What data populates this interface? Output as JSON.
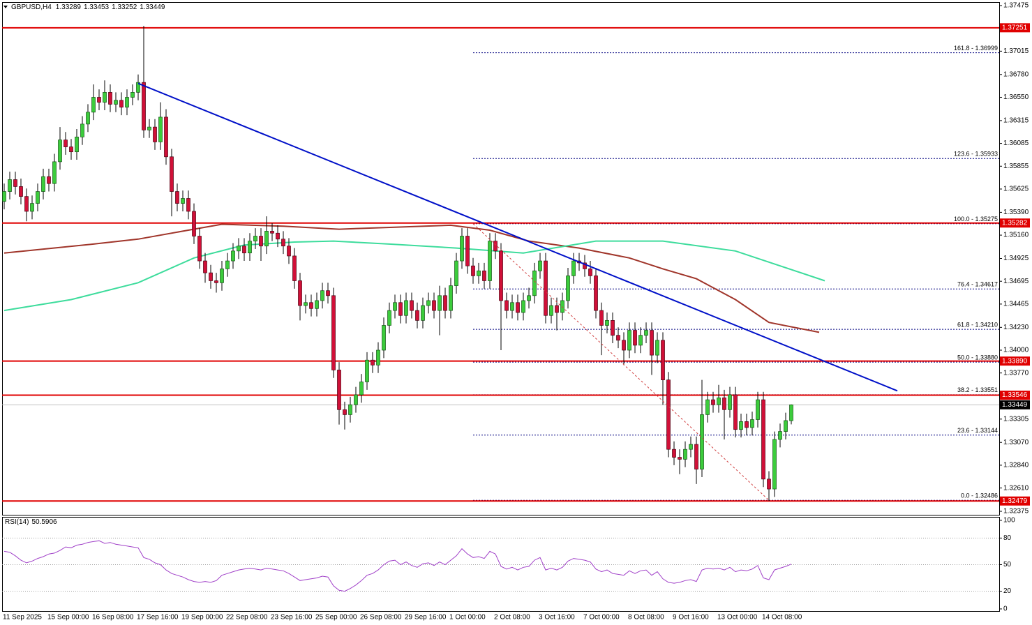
{
  "chart_data": {
    "type": "candlestick",
    "symbol": "GBPUSD,H4",
    "header_ohlc": [
      1.33289,
      1.33453,
      1.33252,
      1.33449
    ],
    "categories": [
      "11 Sep 2025",
      null,
      null,
      null,
      null,
      null,
      null,
      null,
      "15 Sep 00:00",
      null,
      null,
      null,
      null,
      null,
      null,
      null,
      "16 Sep 08:00",
      null,
      null,
      null,
      null,
      null,
      null,
      null,
      "17 Sep 16:00",
      null,
      null,
      null,
      null,
      null,
      null,
      null,
      "19 Sep 00:00",
      null,
      null,
      null,
      null,
      null,
      null,
      null,
      "22 Sep 08:00",
      null,
      null,
      null,
      null,
      null,
      null,
      null,
      "23 Sep 16:00",
      null,
      null,
      null,
      null,
      null,
      null,
      null,
      "25 Sep 00:00",
      null,
      null,
      null,
      null,
      null,
      null,
      null,
      "26 Sep 08:00",
      null,
      null,
      null,
      null,
      null,
      null,
      null,
      "29 Sep 16:00",
      null,
      null,
      null,
      null,
      null,
      null,
      null,
      "1 Oct 00:00",
      null,
      null,
      null,
      null,
      null,
      null,
      null,
      "2 Oct 08:00",
      null,
      null,
      null,
      null,
      null,
      null,
      null,
      "3 Oct 16:00",
      null,
      null,
      null,
      null,
      null,
      null,
      null,
      "7 Oct 00:00",
      null,
      null,
      null,
      null,
      null,
      null,
      null,
      "8 Oct 08:00",
      null,
      null,
      null,
      null,
      null,
      null,
      null,
      "9 Oct 16:00",
      null,
      null,
      null,
      null,
      null,
      null,
      null,
      "13 Oct 00:00",
      null,
      null,
      null,
      null,
      null,
      null,
      null,
      "14 Oct 08:00",
      null,
      null,
      null,
      null,
      null
    ],
    "open": [
      1.355,
      1.356,
      1.3572,
      1.3565,
      1.3555,
      1.354,
      1.3548,
      1.356,
      1.3575,
      1.3568,
      1.359,
      1.3612,
      1.3605,
      1.36,
      1.3615,
      1.3628,
      1.364,
      1.3655,
      1.365,
      1.366,
      1.3648,
      1.3652,
      1.3645,
      1.3655,
      1.366,
      1.367,
      1.3622,
      1.3625,
      1.361,
      1.3635,
      1.3595,
      1.356,
      1.3548,
      1.3553,
      1.354,
      1.3515,
      1.349,
      1.3478,
      1.347,
      1.3468,
      1.3482,
      1.349,
      1.35,
      1.3505,
      1.3498,
      1.351,
      1.3515,
      1.3505,
      1.352,
      1.3518,
      1.3512,
      1.3505,
      1.3495,
      1.347,
      1.3445,
      1.3448,
      1.3442,
      1.345,
      1.346,
      1.3455,
      1.338,
      1.334,
      1.3335,
      1.3345,
      1.3355,
      1.3368,
      1.339,
      1.3385,
      1.34,
      1.3425,
      1.344,
      1.3448,
      1.3435,
      1.345,
      1.344,
      1.343,
      1.3445,
      1.345,
      1.344,
      1.3455,
      1.344,
      1.3465,
      1.349,
      1.3515,
      1.3485,
      1.3475,
      1.348,
      1.347,
      1.351,
      1.35,
      1.345,
      1.344,
      1.3448,
      1.3438,
      1.345,
      1.3455,
      1.348,
      1.349,
      1.3435,
      1.3445,
      1.3438,
      1.345,
      1.3475,
      1.349,
      1.3488,
      1.3482,
      1.3475,
      1.344,
      1.3425,
      1.343,
      1.3415,
      1.341,
      1.34,
      1.342,
      1.3405,
      1.3415,
      1.342,
      1.3395,
      1.341,
      1.337,
      1.33,
      1.3292,
      1.329,
      1.33,
      1.3305,
      1.328,
      1.3335,
      1.335,
      1.3345,
      1.3352,
      1.334,
      1.3355,
      1.332,
      1.3328,
      1.3322,
      1.333,
      1.335,
      1.327,
      1.326,
      1.331,
      1.3318,
      1.33289
    ],
    "high": [
      1.3568,
      1.358,
      1.358,
      1.3573,
      1.3563,
      1.3556,
      1.3568,
      1.3583,
      1.3583,
      1.3598,
      1.3625,
      1.362,
      1.3613,
      1.3623,
      1.3636,
      1.3648,
      1.3668,
      1.3663,
      1.3672,
      1.3668,
      1.366,
      1.366,
      1.3663,
      1.3668,
      1.3678,
      1.3727,
      1.3633,
      1.3633,
      1.365,
      1.3643,
      1.3603,
      1.3568,
      1.3561,
      1.3561,
      1.3548,
      1.3523,
      1.3498,
      1.3486,
      1.3478,
      1.349,
      1.3498,
      1.3508,
      1.3513,
      1.3513,
      1.3518,
      1.3523,
      1.3523,
      1.3535,
      1.3528,
      1.3526,
      1.352,
      1.3513,
      1.3503,
      1.3478,
      1.3456,
      1.3456,
      1.3458,
      1.3468,
      1.3468,
      1.3463,
      1.3388,
      1.3348,
      1.3353,
      1.3363,
      1.3376,
      1.3398,
      1.3398,
      1.3408,
      1.3433,
      1.3448,
      1.3456,
      1.3456,
      1.3458,
      1.3458,
      1.3448,
      1.3453,
      1.3458,
      1.3458,
      1.3465,
      1.3463,
      1.3473,
      1.3498,
      1.3523,
      1.3523,
      1.3493,
      1.3488,
      1.3488,
      1.3518,
      1.3518,
      1.3508,
      1.3458,
      1.3456,
      1.3456,
      1.3458,
      1.3463,
      1.3488,
      1.3498,
      1.3498,
      1.3453,
      1.3453,
      1.3458,
      1.3483,
      1.3498,
      1.3498,
      1.3496,
      1.349,
      1.3483,
      1.3448,
      1.3438,
      1.3438,
      1.3423,
      1.3418,
      1.3428,
      1.3428,
      1.3423,
      1.3428,
      1.3428,
      1.3418,
      1.3418,
      1.3378,
      1.3308,
      1.33,
      1.3308,
      1.3313,
      1.3313,
      1.337,
      1.3358,
      1.3358,
      1.3365,
      1.336,
      1.3363,
      1.3363,
      1.3336,
      1.3336,
      1.3338,
      1.3358,
      1.3358,
      1.3278,
      1.3318,
      1.3326,
      1.3337,
      1.33453
    ],
    "low": [
      1.3542,
      1.3552,
      1.3557,
      1.3547,
      1.353,
      1.3532,
      1.354,
      1.3552,
      1.356,
      1.356,
      1.3582,
      1.3597,
      1.3592,
      1.3592,
      1.3607,
      1.362,
      1.3632,
      1.3642,
      1.3642,
      1.364,
      1.364,
      1.3637,
      1.3637,
      1.3647,
      1.3652,
      1.3614,
      1.3614,
      1.3602,
      1.3602,
      1.3587,
      1.3535,
      1.354,
      1.354,
      1.3532,
      1.3507,
      1.3482,
      1.3468,
      1.3462,
      1.3458,
      1.346,
      1.3474,
      1.3482,
      1.3492,
      1.349,
      1.349,
      1.3502,
      1.349,
      1.3497,
      1.351,
      1.3504,
      1.3497,
      1.3487,
      1.3462,
      1.343,
      1.3437,
      1.3434,
      1.3434,
      1.3442,
      1.3447,
      1.3372,
      1.3325,
      1.332,
      1.3327,
      1.3337,
      1.3347,
      1.336,
      1.3377,
      1.3377,
      1.3392,
      1.3417,
      1.3432,
      1.3427,
      1.3427,
      1.3432,
      1.3422,
      1.3422,
      1.3437,
      1.3432,
      1.3415,
      1.3432,
      1.3432,
      1.3457,
      1.3482,
      1.3477,
      1.3467,
      1.3467,
      1.3462,
      1.3462,
      1.3492,
      1.34,
      1.3432,
      1.3432,
      1.343,
      1.343,
      1.3442,
      1.3447,
      1.3472,
      1.3427,
      1.3427,
      1.342,
      1.343,
      1.3442,
      1.3467,
      1.348,
      1.3474,
      1.3467,
      1.3432,
      1.3395,
      1.3417,
      1.3407,
      1.3402,
      1.3385,
      1.3392,
      1.3397,
      1.3397,
      1.3407,
      1.3375,
      1.3387,
      1.3345,
      1.3292,
      1.3284,
      1.3275,
      1.3282,
      1.3292,
      1.3265,
      1.3272,
      1.3327,
      1.3337,
      1.3337,
      1.331,
      1.3332,
      1.3312,
      1.3312,
      1.3314,
      1.3314,
      1.3322,
      1.3262,
      1.3248,
      1.3252,
      1.3302,
      1.331,
      1.33252
    ],
    "close": [
      1.356,
      1.3572,
      1.3565,
      1.3555,
      1.354,
      1.3548,
      1.356,
      1.3575,
      1.3568,
      1.359,
      1.3612,
      1.3605,
      1.36,
      1.3615,
      1.3628,
      1.364,
      1.3655,
      1.365,
      1.366,
      1.3648,
      1.3652,
      1.3645,
      1.3655,
      1.366,
      1.367,
      1.3622,
      1.3625,
      1.361,
      1.3635,
      1.3595,
      1.356,
      1.3548,
      1.3553,
      1.354,
      1.3515,
      1.349,
      1.3478,
      1.347,
      1.3468,
      1.3482,
      1.349,
      1.35,
      1.3505,
      1.3498,
      1.351,
      1.3515,
      1.3505,
      1.352,
      1.3518,
      1.3512,
      1.3505,
      1.3495,
      1.347,
      1.3445,
      1.3448,
      1.3442,
      1.345,
      1.346,
      1.3455,
      1.338,
      1.334,
      1.3335,
      1.3345,
      1.3355,
      1.3368,
      1.339,
      1.3385,
      1.34,
      1.3425,
      1.344,
      1.3448,
      1.3435,
      1.345,
      1.344,
      1.343,
      1.3445,
      1.345,
      1.344,
      1.3455,
      1.344,
      1.3465,
      1.349,
      1.3515,
      1.3485,
      1.3475,
      1.348,
      1.347,
      1.351,
      1.35,
      1.345,
      1.344,
      1.3448,
      1.3438,
      1.345,
      1.3455,
      1.348,
      1.349,
      1.3435,
      1.3445,
      1.3438,
      1.345,
      1.3475,
      1.349,
      1.3488,
      1.3482,
      1.3475,
      1.344,
      1.3425,
      1.343,
      1.3415,
      1.341,
      1.34,
      1.342,
      1.3405,
      1.3415,
      1.342,
      1.3395,
      1.341,
      1.337,
      1.33,
      1.3292,
      1.329,
      1.33,
      1.3305,
      1.328,
      1.3335,
      1.335,
      1.3345,
      1.3352,
      1.334,
      1.3355,
      1.332,
      1.3328,
      1.3322,
      1.333,
      1.335,
      1.327,
      1.326,
      1.331,
      1.3318,
      1.3329,
      1.33449
    ],
    "up_color": "#3ccc3c",
    "down_color": "#d01038",
    "ylim": [
      1.3234,
      1.3751
    ],
    "yticks": [
      1.37475,
      1.37015,
      {
        "value": 1.3678,
        "label": "1.36780"
      },
      {
        "value": 1.3655,
        "label": "1.36550"
      },
      1.36315,
      1.36085,
      1.35855,
      1.35625,
      {
        "value": 1.3539,
        "label": "1.35390"
      },
      {
        "value": 1.3516,
        "label": "1.35160"
      },
      1.34925,
      1.34695,
      1.34465,
      {
        "value": 1.3423,
        "label": "1.34230"
      },
      {
        "value": 1.34,
        "label": "1.34000"
      },
      {
        "value": 1.3377,
        "label": "1.33770"
      },
      1.33305,
      {
        "value": 1.3307,
        "label": "1.33070"
      },
      {
        "value": 1.3284,
        "label": "1.32840"
      },
      {
        "value": 1.3261,
        "label": "1.32610"
      },
      1.32375
    ],
    "moving_averages": [
      {
        "color": "#a0352a",
        "x": [
          0,
          16,
          24,
          32,
          39,
          50,
          60,
          70,
          80,
          87,
          94,
          103,
          112,
          118,
          124,
          131,
          137,
          146
        ],
        "values": [
          1.3498,
          1.3507,
          1.3512,
          1.352,
          1.3527,
          1.3525,
          1.3522,
          1.3524,
          1.3526,
          1.3521,
          1.351,
          1.3503,
          1.3493,
          1.3482,
          1.3472,
          1.3451,
          1.3428,
          1.3418
        ]
      },
      {
        "color": "#3ddc9c",
        "x": [
          0,
          12,
          24,
          34,
          43,
          52,
          59,
          69,
          81,
          93,
          106,
          118,
          131,
          147
        ],
        "values": [
          1.344,
          1.3451,
          1.3468,
          1.3493,
          1.3506,
          1.3509,
          1.351,
          1.3507,
          1.3503,
          1.3498,
          1.351,
          1.351,
          1.35,
          1.347
        ]
      }
    ],
    "trendlines": [
      {
        "color": "#0010c8",
        "style": "solid",
        "x": [
          24,
          160
        ],
        "values": [
          1.3669,
          1.3359
        ]
      },
      {
        "color": "#d04040",
        "style": "dashed",
        "x": [
          84,
          137
        ],
        "values": [
          1.35275,
          1.32486
        ]
      }
    ],
    "level_color": "#e00000",
    "levels": [
      1.37251,
      1.35282,
      {
        "value": 1.3389,
        "label": "1.33890"
      },
      1.33546,
      1.32479
    ],
    "fib_color": "#000080",
    "fib_start": 84,
    "fib_levels": [
      {
        "value": 1.36999,
        "label": "161.8 - 1.36999"
      },
      {
        "value": 1.35933,
        "label": "123.6 - 1.35933"
      },
      {
        "value": 1.35275,
        "label": "100.0 - 1.35275"
      },
      {
        "value": 1.34617,
        "label": "76.4 - 1.34617"
      },
      {
        "value": 1.3421,
        "label": "61.8 - 1.34210"
      },
      {
        "value": 1.3388,
        "label": "50.0 - 1.33880"
      },
      {
        "value": 1.33551,
        "label": "38.2 - 1.33551"
      },
      {
        "value": 1.33144,
        "label": "23.6 - 1.33144"
      },
      {
        "value": 1.32486,
        "label": "0.0 - 1.32486"
      }
    ],
    "last_price": 1.33449,
    "rsi": {
      "name": "RSI(14)",
      "value": 50.5906,
      "color": "#a040c8",
      "ylim": [
        -2.4,
        103.9
      ],
      "yticks": [
        100,
        80,
        50,
        20,
        0
      ],
      "levels": [
        80,
        50,
        20
      ],
      "values": [
        65,
        64,
        60,
        55,
        52,
        54,
        57,
        59,
        62,
        63,
        66,
        70,
        69,
        72,
        73,
        75,
        76,
        77,
        74,
        75,
        73,
        72,
        71,
        70,
        69,
        58,
        56,
        52,
        50,
        44,
        40,
        38,
        36,
        33,
        31,
        30,
        31,
        30,
        32,
        38,
        40,
        42,
        44,
        45,
        46,
        45,
        44,
        46,
        45,
        44,
        43,
        40,
        36,
        32,
        33,
        34,
        35,
        37,
        36,
        26,
        21,
        20,
        23,
        27,
        32,
        38,
        40,
        44,
        50,
        54,
        55,
        50,
        53,
        49,
        47,
        51,
        52,
        49,
        53,
        50,
        55,
        60,
        68,
        62,
        58,
        59,
        57,
        65,
        62,
        48,
        45,
        47,
        44,
        47,
        48,
        55,
        58,
        44,
        46,
        44,
        47,
        54,
        57,
        56,
        55,
        53,
        45,
        42,
        44,
        40,
        39,
        38,
        43,
        40,
        43,
        44,
        38,
        42,
        34,
        30,
        29,
        30,
        32,
        33,
        31,
        44,
        46,
        45,
        46,
        44,
        47,
        42,
        44,
        43,
        45,
        49,
        35,
        33,
        44,
        46,
        48,
        50.5906
      ]
    }
  }
}
